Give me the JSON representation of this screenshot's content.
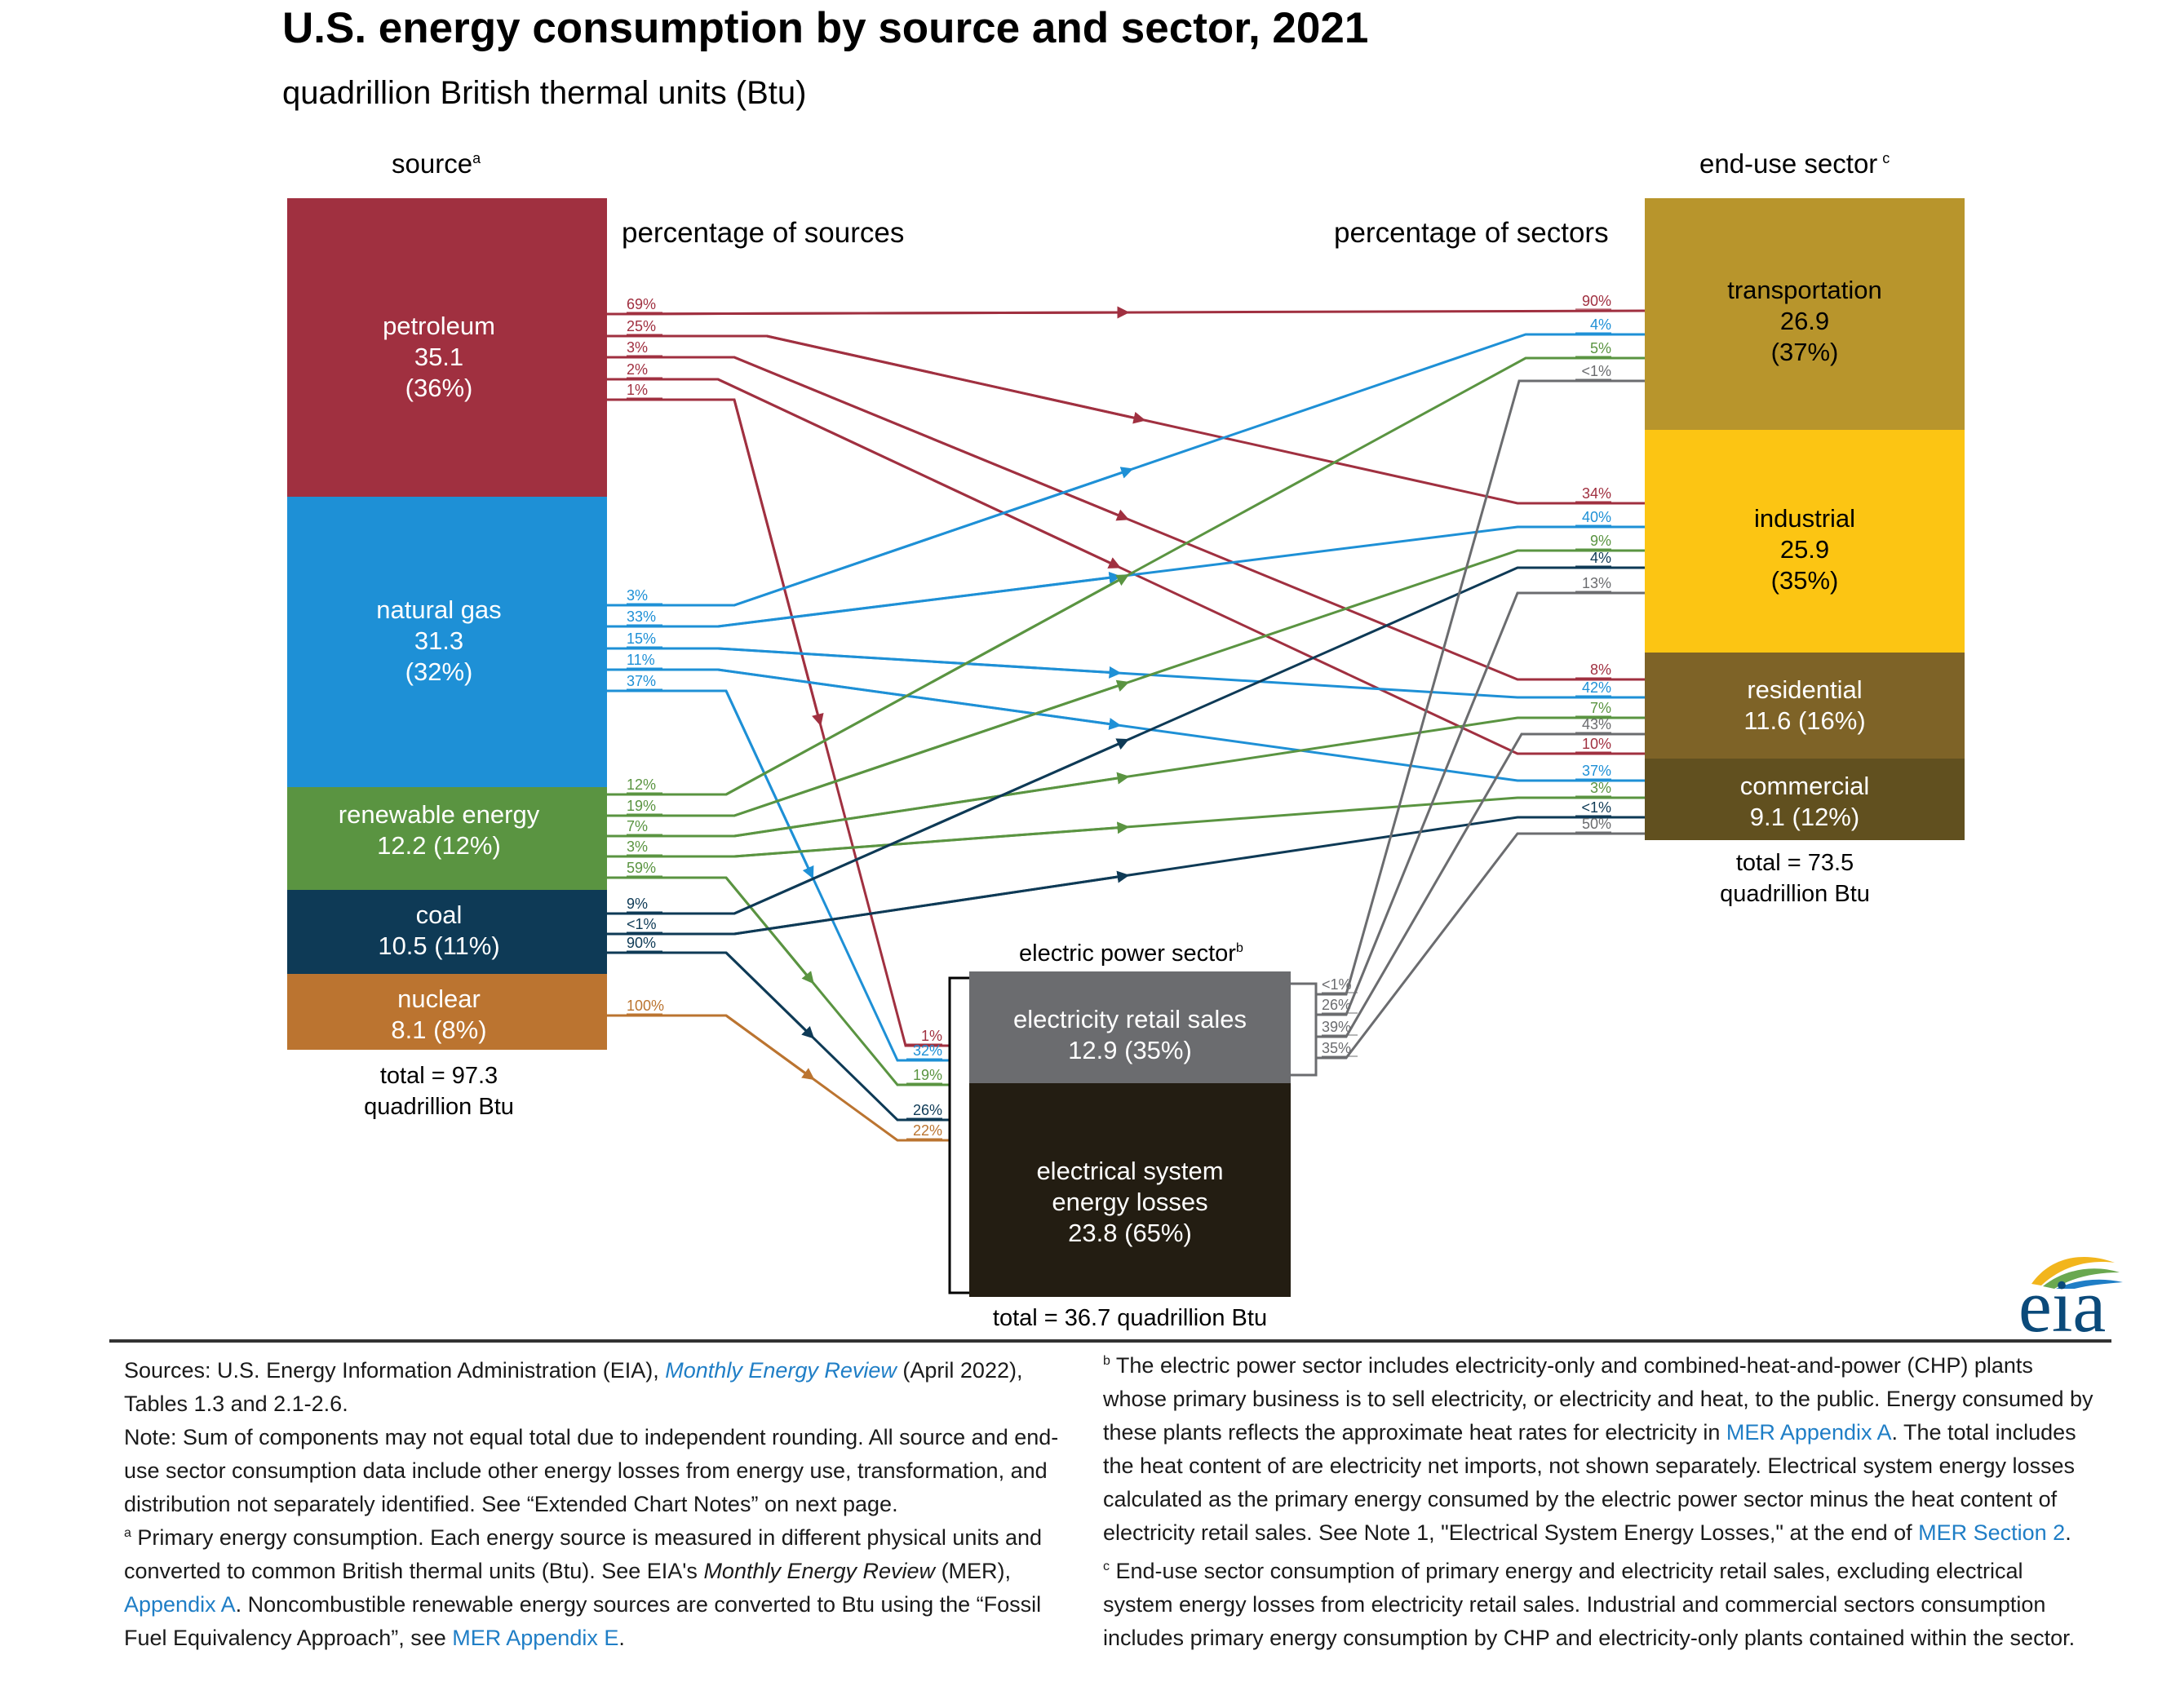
{
  "title": "U.S. energy consumption by source and sector, 2021",
  "subtitle": "quadrillion British thermal units (Btu)",
  "headers": {
    "source": "source",
    "source_sup": "a",
    "sector": "end-use sector",
    "sector_sup": "c",
    "pct_sources": "percentage of sources",
    "pct_sectors": "percentage of sectors",
    "electric": "electric power sector",
    "electric_sup": "b"
  },
  "totals": {
    "sources_line1": "total = 97.3",
    "sources_line2": "quadrillion Btu",
    "sectors_line1": "total = 73.5",
    "sectors_line2": "quadrillion Btu",
    "electric": "total = 36.7 quadrillion Btu"
  },
  "colors": {
    "petroleum": "#a03040",
    "natural_gas": "#1e90d6",
    "renewable": "#5a9441",
    "coal": "#0e3a56",
    "nuclear": "#bb7430",
    "transportation": "#b8952c",
    "industrial": "#fcc513",
    "residential": "#7e6327",
    "commercial": "#61501f",
    "retail": "#6b6c6f",
    "losses": "#231d12",
    "flow_gray": "#6b6c6f"
  },
  "chart_data": {
    "type": "sankey",
    "units": "quadrillion Btu",
    "sources": [
      {
        "name": "petroleum",
        "value": 35.1,
        "label": "petroleum",
        "value_label": "35.1",
        "share_label": "(36%)"
      },
      {
        "name": "natural gas",
        "value": 31.3,
        "label": "natural gas",
        "value_label": "31.3",
        "share_label": "(32%)"
      },
      {
        "name": "renewable energy",
        "value": 12.2,
        "label": "renewable energy",
        "value_label": "12.2 (12%)"
      },
      {
        "name": "coal",
        "value": 10.5,
        "label": "coal",
        "value_label": "10.5 (11%)"
      },
      {
        "name": "nuclear",
        "value": 8.1,
        "label": "nuclear",
        "value_label": "8.1 (8%)"
      }
    ],
    "sectors": [
      {
        "name": "transportation",
        "value": 26.9,
        "label": "transportation",
        "value_label": "26.9",
        "share_label": "(37%)"
      },
      {
        "name": "industrial",
        "value": 25.9,
        "label": "industrial",
        "value_label": "25.9",
        "share_label": "(35%)"
      },
      {
        "name": "residential",
        "value": 11.6,
        "label": "residential",
        "value_label": "11.6 (16%)"
      },
      {
        "name": "commercial",
        "value": 9.1,
        "label": "commercial",
        "value_label": "9.1 (12%)"
      }
    ],
    "electric_power": [
      {
        "name": "electricity retail sales",
        "value": 12.9,
        "label": "electricity retail sales",
        "value_label": "12.9 (35%)"
      },
      {
        "name": "electrical system energy losses",
        "value": 23.8,
        "label1": "electrical system",
        "label2": "energy losses",
        "value_label": "23.8 (65%)"
      }
    ],
    "source_shares": {
      "petroleum": [
        "69%",
        "25%",
        "3%",
        "2%",
        "1%"
      ],
      "natural gas": [
        "3%",
        "33%",
        "15%",
        "11%",
        "37%"
      ],
      "renewable energy": [
        "12%",
        "19%",
        "7%",
        "3%",
        "59%"
      ],
      "coal": [
        "9%",
        "<1%",
        "90%"
      ],
      "nuclear": [
        "100%"
      ]
    },
    "sector_shares": {
      "transportation": [
        "90%",
        "4%",
        "5%",
        "<1%"
      ],
      "industrial": [
        "34%",
        "40%",
        "9%",
        "4%",
        "13%"
      ],
      "residential": [
        "8%",
        "42%",
        "7%",
        "43%"
      ],
      "commercial": [
        "10%",
        "37%",
        "3%",
        "<1%",
        "50%"
      ]
    },
    "electric_input_shares": [
      "1%",
      "32%",
      "19%",
      "26%",
      "22%"
    ],
    "retail_sales_shares": [
      "<1%",
      "26%",
      "39%",
      "35%"
    ]
  },
  "footnotes": {
    "sources_pre": "Sources: U.S. Energy Information Administration (EIA), ",
    "sources_link": "Monthly Energy Review",
    "sources_post": " (April 2022), Tables 1.3 and 2.1-2.6.",
    "note": "Note: Sum of components may not equal total due to independent rounding. All source and end-use sector consumption data include other energy losses from energy use, transformation, and distribution not separately identified. See “Extended Chart Notes” on next page.",
    "a_mark": "a",
    "a_pre": "Primary energy consumption. Each energy source is measured in different physical units and converted to common British thermal units (Btu). See EIA's ",
    "a_italic": "Monthly Energy Review",
    "a_mid": " (MER), ",
    "a_link1": "Appendix A",
    "a_mid2": ". Noncombustible renewable energy sources are converted to Btu using the “Fossil Fuel Equivalency Approach”, see ",
    "a_link2": "MER Appendix E",
    "a_end": ".",
    "b_mark": "b",
    "b_pre": "The electric power sector includes electricity-only and combined-heat-and-power (CHP) plants whose primary business is to sell electricity, or electricity and heat, to the public. Energy consumed by these plants reflects the approximate heat rates for electricity in ",
    "b_link1": "MER Appendix A",
    "b_mid": ". The total includes the heat content of are electricity net imports, not shown separately. Electrical system energy losses calculated as the primary energy consumed by the electric power sector minus the heat content of electricity retail sales. See Note 1, \"Electrical System Energy Losses,\" at the end of ",
    "b_link2": "MER Section 2",
    "b_end": ".",
    "c_mark": "c",
    "c_text": "End-use sector consumption of primary energy and electricity retail sales, excluding electrical system energy losses from electricity retail sales. Industrial and commercial sectors consumption includes primary energy consumption by CHP and electricity-only plants contained within the sector."
  },
  "logo": "eia"
}
